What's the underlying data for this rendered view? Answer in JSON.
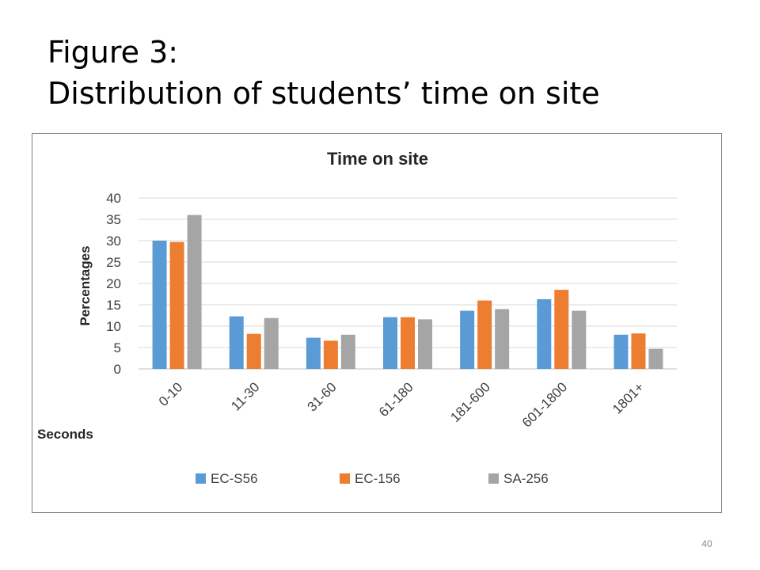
{
  "slide": {
    "title_line1": "Figure 3:",
    "title_line2": "Distribution of students’ time on site",
    "page_number": "40"
  },
  "chart_data": {
    "type": "bar",
    "title": "Time on site",
    "xlabel": "Seconds",
    "ylabel": "Percentages",
    "categories": [
      "0-10",
      "11-30",
      "31-60",
      "61-180",
      "181-600",
      "601-1800",
      "1801+"
    ],
    "series": [
      {
        "name": "EC-S56",
        "color": "#5b9bd5",
        "values": [
          30,
          12.3,
          7.3,
          12.1,
          13.6,
          16.3,
          8.0
        ]
      },
      {
        "name": "EC-156",
        "color": "#ed7d31",
        "values": [
          29.7,
          8.2,
          6.6,
          12.1,
          16.0,
          18.5,
          8.3
        ]
      },
      {
        "name": "SA-256",
        "color": "#a5a5a5",
        "values": [
          36,
          11.9,
          8.0,
          11.6,
          14.0,
          13.6,
          4.7
        ]
      }
    ],
    "ylim": [
      0,
      40
    ],
    "yticks": [
      0,
      5,
      10,
      15,
      20,
      25,
      30,
      35,
      40
    ],
    "grid": true,
    "legend": "bottom"
  }
}
